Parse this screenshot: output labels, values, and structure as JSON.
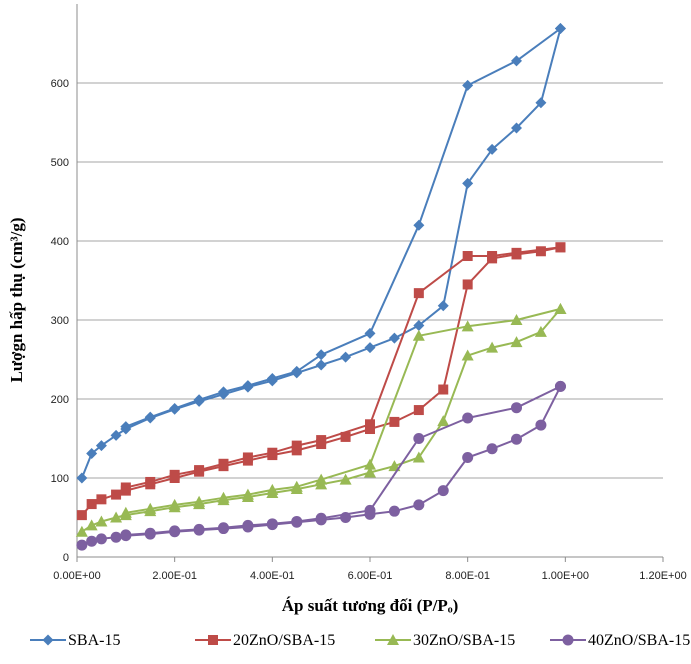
{
  "chart_data": {
    "type": "line",
    "xlabel": "Áp suất tương đối (P/Pₒ)",
    "ylabel": "Lượgn hấp thụ (cm³/g)",
    "xlim": [
      0,
      1.2
    ],
    "ylim": [
      0,
      700
    ],
    "x_ticks": [
      "0.00E+00",
      "2.00E-01",
      "4.00E-01",
      "6.00E-01",
      "8.00E-01",
      "1.00E+00",
      "1.20E+00"
    ],
    "y_ticks": [
      "0",
      "100",
      "200",
      "300",
      "400",
      "500",
      "600"
    ],
    "grid": "horizontal",
    "legend_position": "bottom",
    "series": [
      {
        "name": "SBA-15",
        "color": "#4A7EBB",
        "marker": "diamond",
        "adsorption": [
          [
            0.01,
            100
          ],
          [
            0.03,
            131
          ],
          [
            0.05,
            141
          ],
          [
            0.08,
            154
          ],
          [
            0.1,
            162
          ],
          [
            0.15,
            176
          ],
          [
            0.2,
            187
          ],
          [
            0.25,
            197
          ],
          [
            0.3,
            206
          ],
          [
            0.35,
            215
          ],
          [
            0.4,
            223
          ],
          [
            0.45,
            233
          ],
          [
            0.5,
            243
          ],
          [
            0.55,
            253
          ],
          [
            0.6,
            265
          ],
          [
            0.65,
            277
          ],
          [
            0.7,
            293
          ],
          [
            0.75,
            318
          ],
          [
            0.8,
            473
          ],
          [
            0.85,
            516
          ],
          [
            0.9,
            543
          ],
          [
            0.95,
            575
          ],
          [
            0.99,
            669
          ]
        ],
        "desorption": [
          [
            0.99,
            669
          ],
          [
            0.9,
            628
          ],
          [
            0.8,
            597
          ],
          [
            0.7,
            420
          ],
          [
            0.6,
            283
          ],
          [
            0.5,
            256
          ],
          [
            0.45,
            235
          ],
          [
            0.4,
            226
          ],
          [
            0.35,
            217
          ],
          [
            0.3,
            209
          ],
          [
            0.25,
            199
          ],
          [
            0.2,
            188
          ],
          [
            0.15,
            177
          ],
          [
            0.1,
            165
          ]
        ]
      },
      {
        "name": "20ZnO/SBA-15",
        "color": "#BE4B48",
        "marker": "square",
        "adsorption": [
          [
            0.01,
            53
          ],
          [
            0.03,
            67
          ],
          [
            0.05,
            73
          ],
          [
            0.08,
            79
          ],
          [
            0.1,
            84
          ],
          [
            0.15,
            92
          ],
          [
            0.2,
            100
          ],
          [
            0.25,
            108
          ],
          [
            0.3,
            115
          ],
          [
            0.35,
            122
          ],
          [
            0.4,
            129
          ],
          [
            0.45,
            135
          ],
          [
            0.5,
            143
          ],
          [
            0.55,
            152
          ],
          [
            0.6,
            162
          ],
          [
            0.65,
            171
          ],
          [
            0.7,
            186
          ],
          [
            0.75,
            212
          ],
          [
            0.8,
            345
          ],
          [
            0.85,
            378
          ],
          [
            0.9,
            383
          ],
          [
            0.95,
            387
          ],
          [
            0.99,
            392
          ]
        ],
        "desorption": [
          [
            0.99,
            392
          ],
          [
            0.9,
            385
          ],
          [
            0.85,
            381
          ],
          [
            0.8,
            381
          ],
          [
            0.7,
            334
          ],
          [
            0.6,
            168
          ],
          [
            0.5,
            148
          ],
          [
            0.45,
            141
          ],
          [
            0.4,
            132
          ],
          [
            0.35,
            126
          ],
          [
            0.3,
            118
          ],
          [
            0.25,
            110
          ],
          [
            0.2,
            104
          ],
          [
            0.15,
            95
          ],
          [
            0.1,
            88
          ]
        ]
      },
      {
        "name": "30ZnO/SBA-15",
        "color": "#98B954",
        "marker": "triangle",
        "adsorption": [
          [
            0.01,
            32
          ],
          [
            0.03,
            40
          ],
          [
            0.05,
            45
          ],
          [
            0.08,
            50
          ],
          [
            0.1,
            53
          ],
          [
            0.15,
            58
          ],
          [
            0.2,
            63
          ],
          [
            0.25,
            67
          ],
          [
            0.3,
            72
          ],
          [
            0.35,
            76
          ],
          [
            0.4,
            81
          ],
          [
            0.45,
            86
          ],
          [
            0.5,
            92
          ],
          [
            0.55,
            98
          ],
          [
            0.6,
            107
          ],
          [
            0.65,
            115
          ],
          [
            0.7,
            126
          ],
          [
            0.75,
            172
          ],
          [
            0.8,
            255
          ],
          [
            0.85,
            265
          ],
          [
            0.9,
            272
          ],
          [
            0.95,
            285
          ],
          [
            0.99,
            314
          ]
        ],
        "desorption": [
          [
            0.99,
            314
          ],
          [
            0.9,
            300
          ],
          [
            0.8,
            292
          ],
          [
            0.7,
            280
          ],
          [
            0.6,
            117
          ],
          [
            0.5,
            98
          ],
          [
            0.45,
            89
          ],
          [
            0.4,
            85
          ],
          [
            0.35,
            79
          ],
          [
            0.3,
            75
          ],
          [
            0.25,
            70
          ],
          [
            0.2,
            66
          ],
          [
            0.15,
            61
          ],
          [
            0.1,
            56
          ]
        ]
      },
      {
        "name": "40ZnO/SBA-15",
        "color": "#7D60A0",
        "marker": "circle",
        "adsorption": [
          [
            0.01,
            15
          ],
          [
            0.03,
            20
          ],
          [
            0.05,
            23
          ],
          [
            0.08,
            25
          ],
          [
            0.1,
            27
          ],
          [
            0.15,
            29
          ],
          [
            0.2,
            32
          ],
          [
            0.25,
            34
          ],
          [
            0.3,
            36
          ],
          [
            0.35,
            38
          ],
          [
            0.4,
            41
          ],
          [
            0.45,
            44
          ],
          [
            0.5,
            47
          ],
          [
            0.55,
            50
          ],
          [
            0.6,
            54
          ],
          [
            0.65,
            58
          ],
          [
            0.7,
            66
          ],
          [
            0.75,
            84
          ],
          [
            0.8,
            126
          ],
          [
            0.85,
            137
          ],
          [
            0.9,
            149
          ],
          [
            0.95,
            167
          ],
          [
            0.99,
            216
          ]
        ],
        "desorption": [
          [
            0.99,
            216
          ],
          [
            0.9,
            189
          ],
          [
            0.8,
            176
          ],
          [
            0.7,
            150
          ],
          [
            0.6,
            59
          ],
          [
            0.5,
            49
          ],
          [
            0.45,
            45
          ],
          [
            0.4,
            42
          ],
          [
            0.35,
            40
          ],
          [
            0.3,
            37
          ],
          [
            0.25,
            35
          ],
          [
            0.2,
            33
          ],
          [
            0.15,
            30
          ],
          [
            0.1,
            28
          ]
        ]
      }
    ]
  }
}
